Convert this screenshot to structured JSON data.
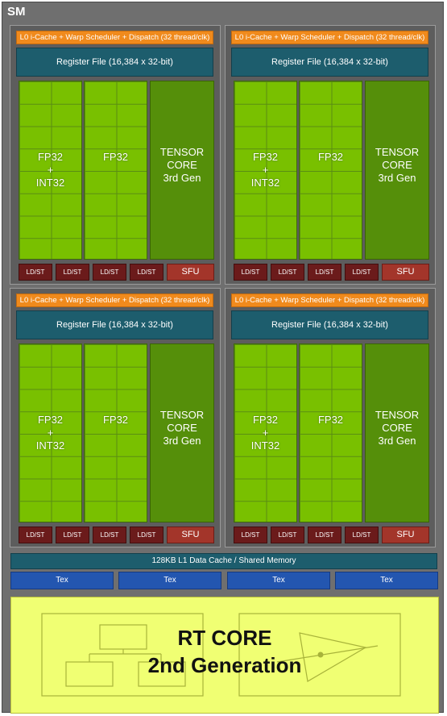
{
  "sm": {
    "title": "SM",
    "partitions": [
      {
        "l0": "L0 i-Cache + Warp Scheduler + Dispatch (32 thread/clk)",
        "register_file": "Register File (16,384 x 32-bit)",
        "fp_int": [
          "FP32",
          "+",
          "INT32"
        ],
        "fp32": "FP32",
        "tensor": [
          "TENSOR",
          "CORE",
          "3rd Gen"
        ],
        "ldst": [
          "LD/ST",
          "LD/ST",
          "LD/ST",
          "LD/ST"
        ],
        "sfu": "SFU"
      },
      {
        "l0": "L0 i-Cache + Warp Scheduler + Dispatch (32 thread/clk)",
        "register_file": "Register File (16,384 x 32-bit)",
        "fp_int": [
          "FP32",
          "+",
          "INT32"
        ],
        "fp32": "FP32",
        "tensor": [
          "TENSOR",
          "CORE",
          "3rd Gen"
        ],
        "ldst": [
          "LD/ST",
          "LD/ST",
          "LD/ST",
          "LD/ST"
        ],
        "sfu": "SFU"
      },
      {
        "l0": "L0 i-Cache + Warp Scheduler + Dispatch (32 thread/clk)",
        "register_file": "Register File (16,384 x 32-bit)",
        "fp_int": [
          "FP32",
          "+",
          "INT32"
        ],
        "fp32": "FP32",
        "tensor": [
          "TENSOR",
          "CORE",
          "3rd Gen"
        ],
        "ldst": [
          "LD/ST",
          "LD/ST",
          "LD/ST",
          "LD/ST"
        ],
        "sfu": "SFU"
      },
      {
        "l0": "L0 i-Cache + Warp Scheduler + Dispatch (32 thread/clk)",
        "register_file": "Register File (16,384 x 32-bit)",
        "fp_int": [
          "FP32",
          "+",
          "INT32"
        ],
        "fp32": "FP32",
        "tensor": [
          "TENSOR",
          "CORE",
          "3rd Gen"
        ],
        "ldst": [
          "LD/ST",
          "LD/ST",
          "LD/ST",
          "LD/ST"
        ],
        "sfu": "SFU"
      }
    ],
    "l1_cache": "128KB L1 Data Cache / Shared Memory",
    "tex": [
      "Tex",
      "Tex",
      "Tex",
      "Tex"
    ],
    "rt_core": [
      "RT CORE",
      "2nd Generation"
    ]
  },
  "colors": {
    "l0": "#f08a1c",
    "register_file": "#1d5d6d",
    "fp_units": "#79c000",
    "tensor_core": "#558f0a",
    "ldst": "#6b1b1b",
    "sfu": "#a3352a",
    "tex": "#2356b0",
    "rt_core": "#f0ff73"
  }
}
